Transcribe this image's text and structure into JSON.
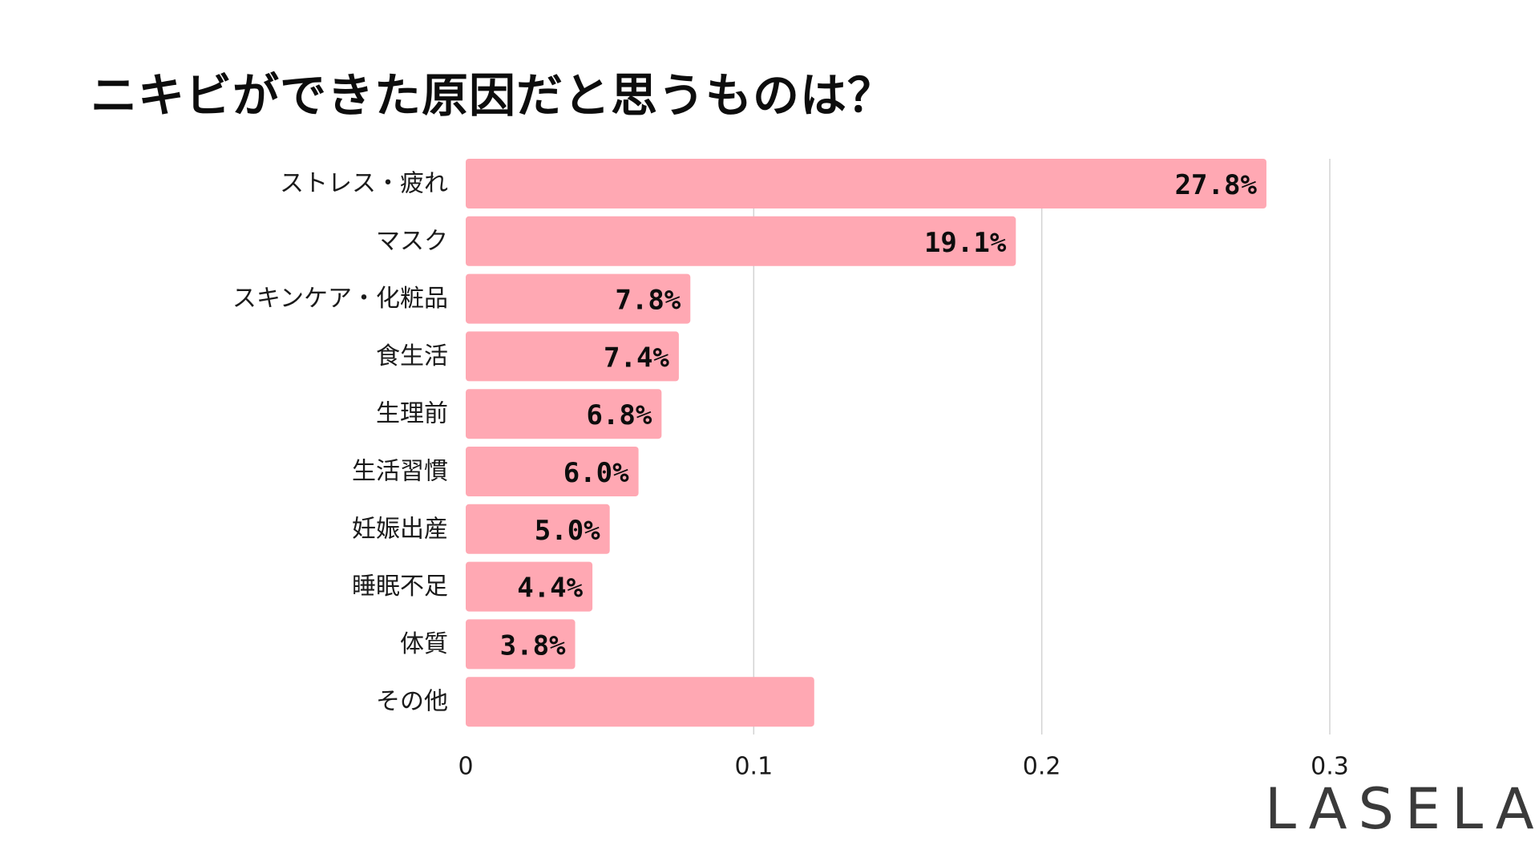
{
  "chart_data": {
    "type": "bar",
    "orientation": "horizontal",
    "title": "ニキビができた原因だと思うものは？",
    "categories": [
      "ストレス・疲れ",
      "マスク",
      "スキンケア・化粧品",
      "食生活",
      "生理前",
      "生活習慣",
      "妊娠出産",
      "睡眠不足",
      "体質",
      "その他"
    ],
    "values": [
      0.278,
      0.191,
      0.078,
      0.074,
      0.068,
      0.06,
      0.05,
      0.044,
      0.038,
      0.121
    ],
    "value_labels": [
      "27.8%",
      "19.1%",
      "7.8%",
      "7.4%",
      "6.8%",
      "6.0%",
      "5.0%",
      "4.4%",
      "3.8%",
      ""
    ],
    "xlim": [
      0,
      0.3
    ],
    "xticks": [
      0,
      0.1,
      0.2,
      0.3
    ],
    "xtick_labels": [
      "0",
      "0.1",
      "0.2",
      "0.3"
    ],
    "xlabel": "",
    "ylabel": "",
    "grid": "vertical",
    "bar_color": "#ffa8b3"
  },
  "brand": "LASELA"
}
